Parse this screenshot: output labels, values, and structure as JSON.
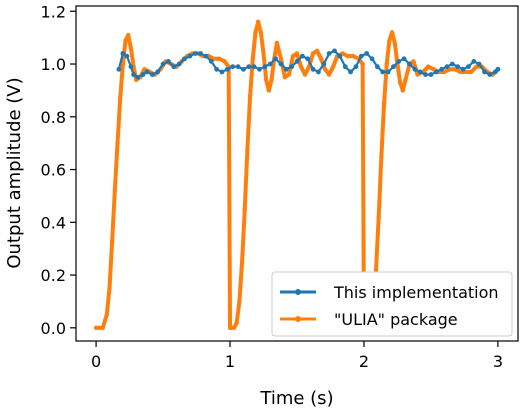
{
  "chart_data": {
    "type": "line",
    "title": "",
    "xlabel": "Time (s)",
    "ylabel": "Output amplitude (V)",
    "xlim": [
      -0.15,
      3.15
    ],
    "ylim": [
      -0.05,
      1.22
    ],
    "xticks": [
      0,
      1,
      2,
      3
    ],
    "xtick_labels": [
      "0",
      "1",
      "2",
      "3"
    ],
    "yticks": [
      0.0,
      0.2,
      0.4,
      0.6,
      0.8,
      1.0,
      1.2
    ],
    "ytick_labels": [
      "0.0",
      "0.2",
      "0.4",
      "0.6",
      "0.8",
      "1.0",
      "1.2"
    ],
    "grid": false,
    "legend_position": "bottom-right",
    "series": [
      {
        "name": "This implementation",
        "color": "#1f77b4",
        "x": [
          0.17,
          0.2,
          0.23,
          0.26,
          0.28,
          0.31,
          0.35,
          0.38,
          0.42,
          0.46,
          0.5,
          0.54,
          0.58,
          0.62,
          0.66,
          0.7,
          0.74,
          0.78,
          0.82,
          0.86,
          0.9,
          0.94,
          0.98,
          1.02,
          1.06,
          1.1,
          1.14,
          1.18,
          1.22,
          1.26,
          1.3,
          1.34,
          1.38,
          1.42,
          1.46,
          1.5,
          1.54,
          1.58,
          1.62,
          1.66,
          1.7,
          1.74,
          1.78,
          1.82,
          1.86,
          1.9,
          1.94,
          1.98,
          2.02,
          2.06,
          2.1,
          2.14,
          2.18,
          2.22,
          2.26,
          2.3,
          2.34,
          2.38,
          2.42,
          2.46,
          2.5,
          2.54,
          2.58,
          2.62,
          2.66,
          2.7,
          2.74,
          2.78,
          2.82,
          2.86,
          2.9,
          2.94,
          2.98,
          3.0
        ],
        "y": [
          0.98,
          1.04,
          1.03,
          0.99,
          0.96,
          0.95,
          0.96,
          0.97,
          0.96,
          0.97,
          1.0,
          1.01,
          0.99,
          1.0,
          1.02,
          1.03,
          1.04,
          1.04,
          1.03,
          1.01,
          0.98,
          0.97,
          0.98,
          0.99,
          0.99,
          0.98,
          0.99,
          0.99,
          0.98,
          0.99,
          1.0,
          1.02,
          1.0,
          0.98,
          0.99,
          1.01,
          1.03,
          1.02,
          0.98,
          0.97,
          1.0,
          1.04,
          1.05,
          1.03,
          0.99,
          0.97,
          0.99,
          1.03,
          1.04,
          1.02,
          0.99,
          0.97,
          0.97,
          0.99,
          1.01,
          1.02,
          1.0,
          0.98,
          0.97,
          0.96,
          0.96,
          0.97,
          0.98,
          0.99,
          1.0,
          0.99,
          0.98,
          0.99,
          1.01,
          1.0,
          0.97,
          0.96,
          0.97,
          0.98
        ]
      },
      {
        "name": "\"ULIA\" package",
        "color": "#ff7f0e",
        "x": [
          0.0,
          0.05,
          0.08,
          0.1,
          0.12,
          0.14,
          0.16,
          0.18,
          0.2,
          0.22,
          0.24,
          0.26,
          0.28,
          0.3,
          0.33,
          0.36,
          0.4,
          0.44,
          0.48,
          0.52,
          0.56,
          0.6,
          0.64,
          0.68,
          0.72,
          0.76,
          0.8,
          0.84,
          0.88,
          0.92,
          0.96,
          0.99,
          1.0,
          1.01,
          1.03,
          1.05,
          1.07,
          1.09,
          1.11,
          1.13,
          1.15,
          1.17,
          1.19,
          1.21,
          1.23,
          1.25,
          1.27,
          1.29,
          1.31,
          1.33,
          1.35,
          1.38,
          1.41,
          1.44,
          1.47,
          1.5,
          1.53,
          1.56,
          1.59,
          1.62,
          1.65,
          1.68,
          1.71,
          1.74,
          1.77,
          1.8,
          1.84,
          1.88,
          1.92,
          1.96,
          1.99,
          2.0,
          2.01,
          2.03,
          2.05,
          2.07,
          2.09,
          2.11,
          2.13,
          2.15,
          2.17,
          2.19,
          2.21,
          2.23,
          2.25,
          2.27,
          2.29,
          2.31,
          2.34,
          2.37,
          2.4,
          2.44,
          2.48,
          2.52,
          2.56,
          2.6,
          2.64,
          2.68,
          2.72,
          2.76,
          2.8,
          2.84,
          2.88,
          2.92,
          2.96,
          3.0
        ],
        "y": [
          0.0,
          0.0,
          0.05,
          0.15,
          0.33,
          0.52,
          0.7,
          0.87,
          1.0,
          1.09,
          1.11,
          1.06,
          0.99,
          0.94,
          0.95,
          0.98,
          0.97,
          0.96,
          0.98,
          1.01,
          1.0,
          0.99,
          1.01,
          1.03,
          1.04,
          1.04,
          1.03,
          1.03,
          1.02,
          1.02,
          1.01,
          0.99,
          0.0,
          0.0,
          0.0,
          0.02,
          0.1,
          0.25,
          0.45,
          0.68,
          0.88,
          1.02,
          1.12,
          1.16,
          1.12,
          1.04,
          0.94,
          0.9,
          0.94,
          1.02,
          1.08,
          1.02,
          0.95,
          0.96,
          1.03,
          1.04,
          0.99,
          0.96,
          0.99,
          1.04,
          1.05,
          1.02,
          0.98,
          0.96,
          0.99,
          1.03,
          1.04,
          1.03,
          1.03,
          1.02,
          1.0,
          0.0,
          0.0,
          0.0,
          0.02,
          0.08,
          0.22,
          0.42,
          0.65,
          0.85,
          1.0,
          1.09,
          1.12,
          1.08,
          1.0,
          0.93,
          0.9,
          0.94,
          1.0,
          1.01,
          0.96,
          0.97,
          0.99,
          0.98,
          0.97,
          0.97,
          0.98,
          0.98,
          0.97,
          0.97,
          0.97,
          0.99,
          0.99,
          0.97,
          0.96,
          0.98
        ]
      }
    ]
  }
}
